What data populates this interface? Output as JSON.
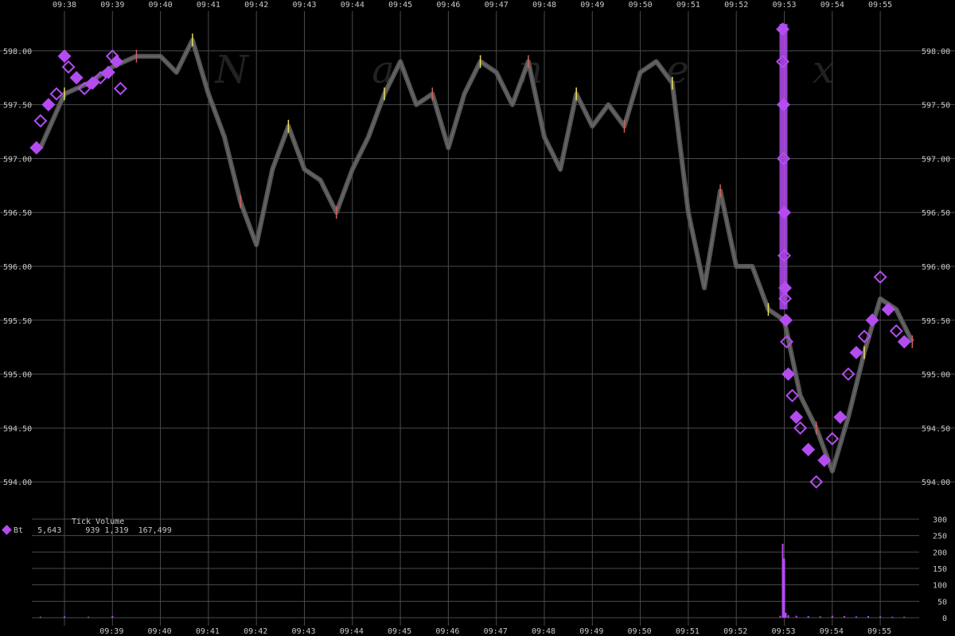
{
  "watermark": "N a n e x",
  "legend": {
    "title": "Tick Volume",
    "series_label": "Bt",
    "values": [
      "5,643",
      "939",
      "1,319",
      "167,499"
    ]
  },
  "colors": {
    "background": "#000000",
    "grid": "#4a4a4a",
    "price": "#555555",
    "trade_marker": "#b44cf0",
    "volume": "#b44cf0",
    "highlight_up": "#e8e060",
    "highlight_down": "#d06060"
  },
  "chart_data": [
    {
      "type": "line",
      "x_ticks_top": [
        "09:38",
        "09:39",
        "09:40",
        "09:41",
        "09:42",
        "09:43",
        "09:44",
        "09:45",
        "09:46",
        "09:47",
        "09:48",
        "09:49",
        "09:50",
        "09:51",
        "09:52",
        "09:53",
        "09:54",
        "09:55"
      ],
      "y_ticks": [
        "598.00",
        "597.50",
        "597.00",
        "596.50",
        "596.00",
        "595.50",
        "595.00",
        "594.50",
        "594.00"
      ],
      "ylim": [
        593.75,
        598.25
      ],
      "series": [
        {
          "x": [
            "09:37:30",
            "09:38:00",
            "09:38:30",
            "09:39:00",
            "09:39:30",
            "09:40:00",
            "09:40:20",
            "09:40:40",
            "09:41:00",
            "09:41:20",
            "09:41:40",
            "09:42:00",
            "09:42:20",
            "09:42:40",
            "09:43:00",
            "09:43:20",
            "09:43:40",
            "09:44:00",
            "09:44:20",
            "09:44:40",
            "09:45:00",
            "09:45:20",
            "09:45:40",
            "09:46:00",
            "09:46:20",
            "09:46:40",
            "09:47:00",
            "09:47:20",
            "09:47:40",
            "09:48:00",
            "09:48:20",
            "09:48:40",
            "09:49:00",
            "09:49:20",
            "09:49:40",
            "09:50:00",
            "09:50:20",
            "09:50:40",
            "09:51:00",
            "09:51:20",
            "09:51:40",
            "09:52:00",
            "09:52:20",
            "09:52:40",
            "09:53:00",
            "09:53:20",
            "09:53:40",
            "09:54:00",
            "09:54:20",
            "09:54:40",
            "09:55:00",
            "09:55:20",
            "09:55:40"
          ],
          "y": [
            597.1,
            597.6,
            597.7,
            597.85,
            597.95,
            597.95,
            597.8,
            598.1,
            597.6,
            597.2,
            596.6,
            596.2,
            596.9,
            597.3,
            596.9,
            596.8,
            596.5,
            596.9,
            597.2,
            597.6,
            597.9,
            597.5,
            597.6,
            597.1,
            597.6,
            597.9,
            597.8,
            597.5,
            597.9,
            597.2,
            596.9,
            597.6,
            597.3,
            597.5,
            597.3,
            597.8,
            597.9,
            597.7,
            596.5,
            595.8,
            596.7,
            596.0,
            596.0,
            595.6,
            595.5,
            594.8,
            594.5,
            594.1,
            594.6,
            595.2,
            595.7,
            595.6,
            595.3
          ]
        },
        {
          "name": "Bt",
          "x": [
            "09:37:25",
            "09:37:30",
            "09:37:40",
            "09:37:50",
            "09:38:00",
            "09:38:05",
            "09:38:15",
            "09:38:25",
            "09:38:35",
            "09:38:45",
            "09:38:55",
            "09:39:00",
            "09:39:05",
            "09:39:10",
            "09:52:58",
            "09:52:58",
            "09:52:59",
            "09:52:59",
            "09:53:00",
            "09:53:00",
            "09:53:01",
            "09:53:01",
            "09:53:02",
            "09:53:03",
            "09:53:05",
            "09:53:10",
            "09:53:15",
            "09:53:20",
            "09:53:30",
            "09:53:40",
            "09:53:50",
            "09:54:00",
            "09:54:10",
            "09:54:20",
            "09:54:30",
            "09:54:40",
            "09:54:50",
            "09:55:00",
            "09:55:10",
            "09:55:20",
            "09:55:30"
          ],
          "y": [
            597.1,
            597.35,
            597.5,
            597.6,
            597.95,
            597.85,
            597.75,
            597.65,
            597.7,
            597.75,
            597.8,
            597.95,
            597.9,
            597.65,
            598.2,
            597.9,
            597.5,
            597.0,
            596.5,
            596.1,
            595.8,
            595.7,
            595.5,
            595.3,
            595.0,
            594.8,
            594.6,
            594.5,
            594.3,
            594.0,
            594.2,
            594.4,
            594.6,
            595.0,
            595.2,
            595.35,
            595.5,
            595.9,
            595.6,
            595.4,
            595.3
          ]
        }
      ]
    },
    {
      "type": "bar",
      "x_ticks_bottom": [
        "09:39",
        "09:40",
        "09:41",
        "09:42",
        "09:43",
        "09:44",
        "09:45",
        "09:46",
        "09:47",
        "09:48",
        "09:49",
        "09:50",
        "09:51",
        "09:52",
        "09:53",
        "09:54",
        "09:55"
      ],
      "y_ticks": [
        "300",
        "250",
        "200",
        "150",
        "100",
        "50",
        "0"
      ],
      "ylim": [
        0,
        300
      ],
      "series": [
        {
          "name": "Bt",
          "x": [
            "09:37:30",
            "09:38:00",
            "09:38:30",
            "09:39:00",
            "09:52:55",
            "09:52:58",
            "09:53:00",
            "09:53:02",
            "09:53:05",
            "09:53:15",
            "09:53:30",
            "09:53:45",
            "09:54:00",
            "09:54:15",
            "09:54:30",
            "09:54:45",
            "09:55:00",
            "09:55:15",
            "09:55:30"
          ],
          "y": [
            3,
            4,
            3,
            5,
            6,
            225,
            180,
            15,
            8,
            6,
            5,
            4,
            6,
            5,
            4,
            5,
            4,
            3,
            3
          ]
        }
      ]
    }
  ]
}
